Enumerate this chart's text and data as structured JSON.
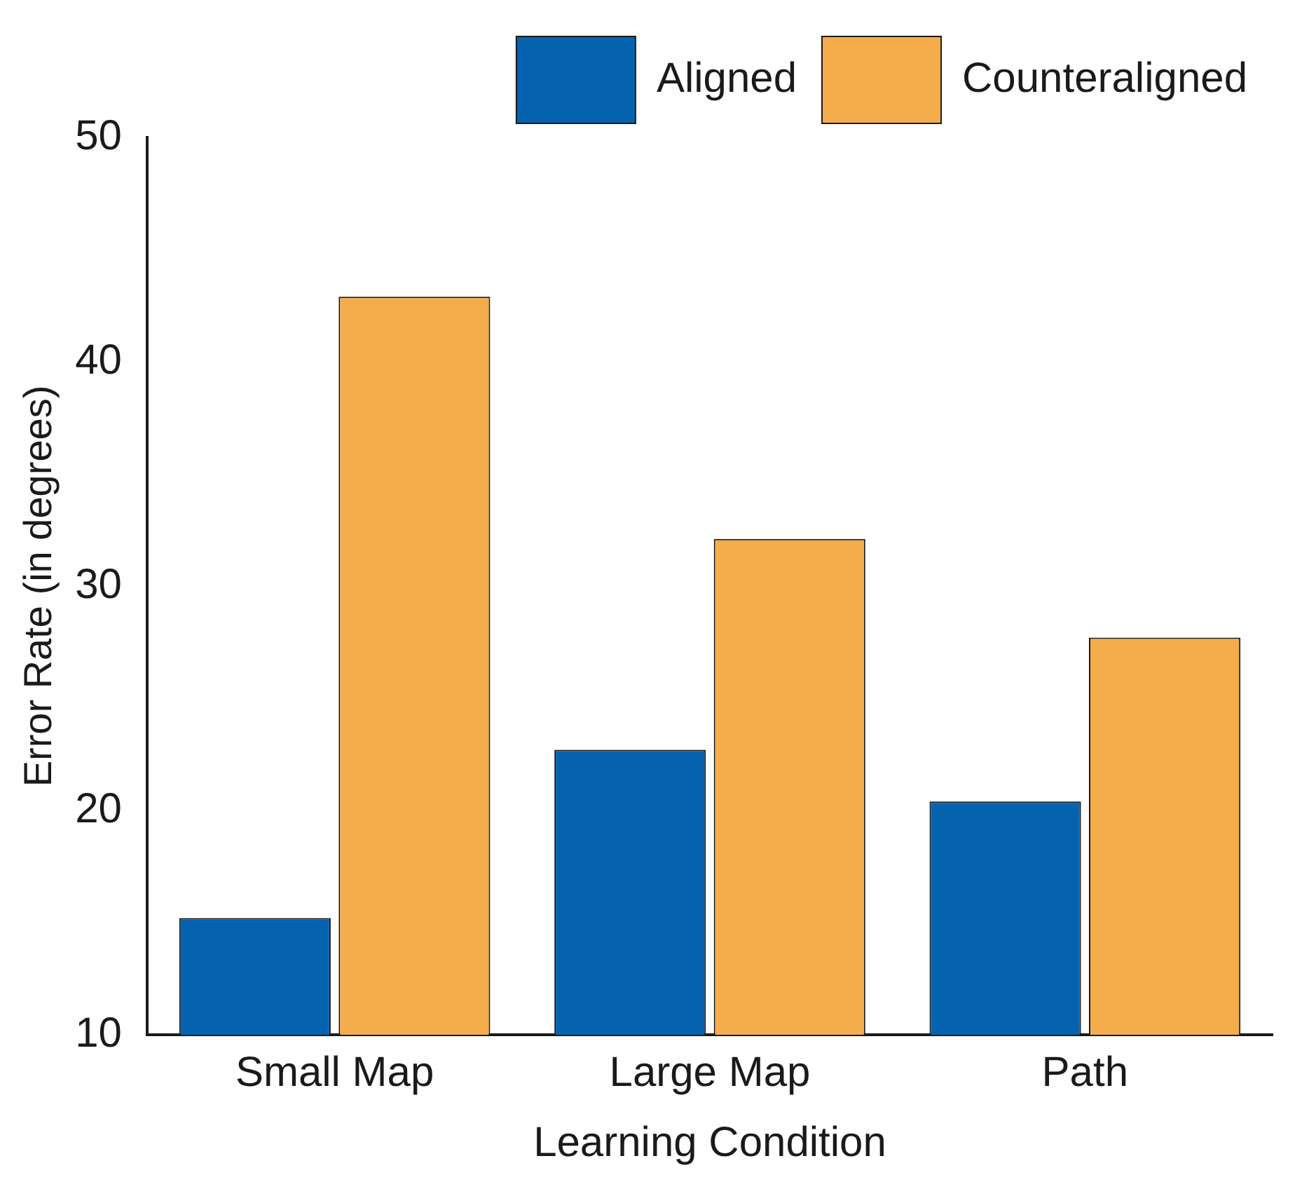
{
  "chart_data": {
    "type": "bar",
    "xlabel": "Learning Condition",
    "ylabel": "Error Rate (in degrees)",
    "categories": [
      "Small Map",
      "Large Map",
      "Path"
    ],
    "series": [
      {
        "name": "Aligned",
        "color": "#0563b0",
        "values": [
          15.2,
          22.7,
          20.4
        ]
      },
      {
        "name": "Counteraligned",
        "color": "#f5ad4c",
        "values": [
          42.9,
          32.1,
          27.7
        ]
      }
    ],
    "ylim": [
      10,
      50
    ],
    "yticks": [
      10,
      20,
      30,
      40,
      50
    ],
    "grid": false,
    "legend": "top right"
  }
}
